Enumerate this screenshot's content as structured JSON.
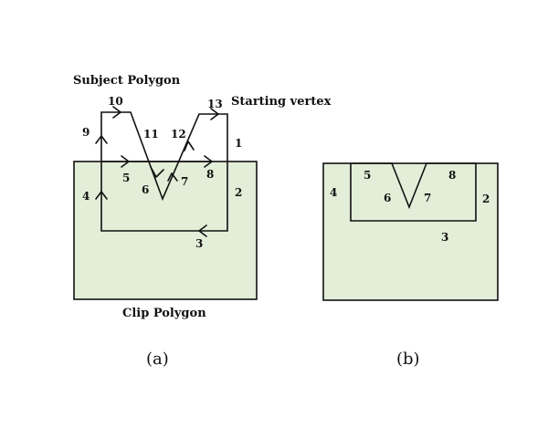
{
  "panel_a": {
    "subject_title": "Subject Polygon",
    "starting_vertex": "Starting vertex",
    "clip_title": "Clip Polygon",
    "caption": "(a)",
    "edge_labels": {
      "e1": "1",
      "e2": "2",
      "e3": "3",
      "e4": "4",
      "e5": "5",
      "e6": "6",
      "e7": "7",
      "e8": "8",
      "e9": "9",
      "e10": "10",
      "e11": "11",
      "e12": "12",
      "e13": "13"
    }
  },
  "panel_b": {
    "caption": "(b)",
    "edge_labels": {
      "e2": "2",
      "e3": "3",
      "e4": "4",
      "e5": "5",
      "e6": "6",
      "e7": "7",
      "e8": "8"
    }
  },
  "colors": {
    "clip_fill": "#e2eed8",
    "stroke": "#111111"
  }
}
